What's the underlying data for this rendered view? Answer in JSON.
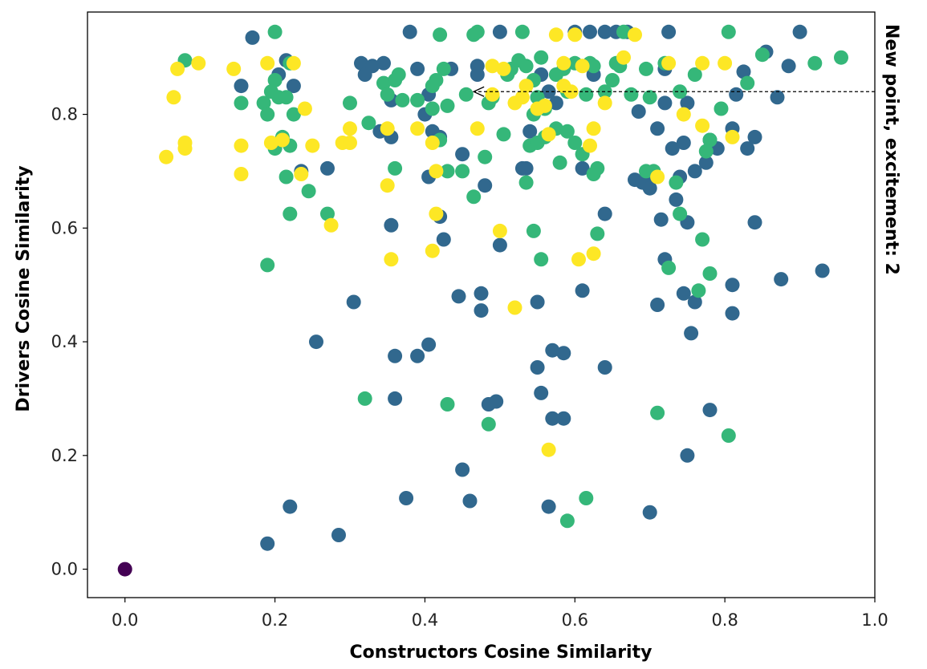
{
  "chart_data": {
    "type": "scatter",
    "title": "",
    "xlabel": "Constructors Cosine Similarity",
    "ylabel": "Drivers Cosine Similarity",
    "xlim": [
      -0.05,
      1.0
    ],
    "ylim": [
      -0.05,
      0.98
    ],
    "xticks": [
      {
        "value": 0.0,
        "label": "0.0"
      },
      {
        "value": 0.2,
        "label": "0.2"
      },
      {
        "value": 0.4,
        "label": "0.4"
      },
      {
        "value": 0.6,
        "label": "0.6"
      },
      {
        "value": 0.8,
        "label": "0.8"
      },
      {
        "value": 1.0,
        "label": "1.0"
      }
    ],
    "yticks": [
      {
        "value": 0.0,
        "label": "0.0"
      },
      {
        "value": 0.2,
        "label": "0.2"
      },
      {
        "value": 0.4,
        "label": "0.4"
      },
      {
        "value": 0.6,
        "label": "0.6"
      },
      {
        "value": 0.8,
        "label": "0.8"
      }
    ],
    "grid": false,
    "annotation": {
      "text": "New point, excitement: 2",
      "xy": [
        0.465,
        0.84
      ],
      "xytext": [
        1.0,
        0.84
      ]
    },
    "series": [
      {
        "color": "#440154",
        "points": [
          [
            0.0,
            0.0
          ]
        ]
      },
      {
        "color": "#31688e",
        "points": [
          [
            0.17,
            0.935
          ],
          [
            0.155,
            0.85
          ],
          [
            0.205,
            0.87
          ],
          [
            0.215,
            0.895
          ],
          [
            0.225,
            0.85
          ],
          [
            0.235,
            0.7
          ],
          [
            0.27,
            0.705
          ],
          [
            0.315,
            0.89
          ],
          [
            0.32,
            0.87
          ],
          [
            0.33,
            0.885
          ],
          [
            0.345,
            0.89
          ],
          [
            0.34,
            0.77
          ],
          [
            0.355,
            0.76
          ],
          [
            0.355,
            0.825
          ],
          [
            0.38,
            0.945
          ],
          [
            0.39,
            0.88
          ],
          [
            0.4,
            0.8
          ],
          [
            0.405,
            0.835
          ],
          [
            0.41,
            0.77
          ],
          [
            0.42,
            0.76
          ],
          [
            0.405,
            0.69
          ],
          [
            0.435,
            0.88
          ],
          [
            0.45,
            0.73
          ],
          [
            0.47,
            0.885
          ],
          [
            0.47,
            0.87
          ],
          [
            0.48,
            0.675
          ],
          [
            0.5,
            0.945
          ],
          [
            0.53,
            0.705
          ],
          [
            0.535,
            0.705
          ],
          [
            0.54,
            0.77
          ],
          [
            0.55,
            0.83
          ],
          [
            0.555,
            0.87
          ],
          [
            0.565,
            0.84
          ],
          [
            0.575,
            0.82
          ],
          [
            0.6,
            0.945
          ],
          [
            0.61,
            0.705
          ],
          [
            0.62,
            0.945
          ],
          [
            0.625,
            0.87
          ],
          [
            0.64,
            0.945
          ],
          [
            0.655,
            0.945
          ],
          [
            0.67,
            0.945
          ],
          [
            0.68,
            0.685
          ],
          [
            0.685,
            0.805
          ],
          [
            0.69,
            0.68
          ],
          [
            0.7,
            0.67
          ],
          [
            0.705,
            0.69
          ],
          [
            0.71,
            0.775
          ],
          [
            0.715,
            0.615
          ],
          [
            0.72,
            0.88
          ],
          [
            0.72,
            0.82
          ],
          [
            0.725,
            0.945
          ],
          [
            0.73,
            0.74
          ],
          [
            0.74,
            0.69
          ],
          [
            0.745,
            0.75
          ],
          [
            0.75,
            0.82
          ],
          [
            0.76,
            0.7
          ],
          [
            0.775,
            0.715
          ],
          [
            0.78,
            0.755
          ],
          [
            0.79,
            0.74
          ],
          [
            0.81,
            0.775
          ],
          [
            0.815,
            0.835
          ],
          [
            0.825,
            0.875
          ],
          [
            0.83,
            0.74
          ],
          [
            0.84,
            0.76
          ],
          [
            0.855,
            0.91
          ],
          [
            0.87,
            0.83
          ],
          [
            0.885,
            0.885
          ],
          [
            0.9,
            0.945
          ],
          [
            0.355,
            0.605
          ],
          [
            0.42,
            0.62
          ],
          [
            0.425,
            0.58
          ],
          [
            0.5,
            0.57
          ],
          [
            0.445,
            0.48
          ],
          [
            0.475,
            0.485
          ],
          [
            0.475,
            0.455
          ],
          [
            0.305,
            0.47
          ],
          [
            0.55,
            0.47
          ],
          [
            0.61,
            0.49
          ],
          [
            0.64,
            0.625
          ],
          [
            0.71,
            0.465
          ],
          [
            0.72,
            0.545
          ],
          [
            0.735,
            0.65
          ],
          [
            0.745,
            0.485
          ],
          [
            0.75,
            0.61
          ],
          [
            0.76,
            0.47
          ],
          [
            0.81,
            0.5
          ],
          [
            0.81,
            0.45
          ],
          [
            0.84,
            0.61
          ],
          [
            0.875,
            0.51
          ],
          [
            0.93,
            0.525
          ],
          [
            0.755,
            0.415
          ],
          [
            0.255,
            0.4
          ],
          [
            0.36,
            0.375
          ],
          [
            0.39,
            0.375
          ],
          [
            0.405,
            0.395
          ],
          [
            0.57,
            0.385
          ],
          [
            0.585,
            0.38
          ],
          [
            0.55,
            0.355
          ],
          [
            0.555,
            0.31
          ],
          [
            0.64,
            0.355
          ],
          [
            0.36,
            0.3
          ],
          [
            0.485,
            0.29
          ],
          [
            0.495,
            0.295
          ],
          [
            0.57,
            0.265
          ],
          [
            0.585,
            0.265
          ],
          [
            0.78,
            0.28
          ],
          [
            0.75,
            0.2
          ],
          [
            0.45,
            0.175
          ],
          [
            0.22,
            0.11
          ],
          [
            0.375,
            0.125
          ],
          [
            0.46,
            0.12
          ],
          [
            0.565,
            0.11
          ],
          [
            0.7,
            0.1
          ],
          [
            0.285,
            0.06
          ],
          [
            0.19,
            0.045
          ]
        ]
      },
      {
        "color": "#35b779",
        "points": [
          [
            0.08,
            0.895
          ],
          [
            0.2,
            0.945
          ],
          [
            0.155,
            0.82
          ],
          [
            0.185,
            0.82
          ],
          [
            0.19,
            0.8
          ],
          [
            0.195,
            0.84
          ],
          [
            0.2,
            0.86
          ],
          [
            0.205,
            0.83
          ],
          [
            0.215,
            0.83
          ],
          [
            0.22,
            0.89
          ],
          [
            0.225,
            0.8
          ],
          [
            0.2,
            0.74
          ],
          [
            0.21,
            0.76
          ],
          [
            0.22,
            0.745
          ],
          [
            0.215,
            0.69
          ],
          [
            0.245,
            0.665
          ],
          [
            0.27,
            0.625
          ],
          [
            0.22,
            0.625
          ],
          [
            0.19,
            0.535
          ],
          [
            0.3,
            0.82
          ],
          [
            0.325,
            0.785
          ],
          [
            0.345,
            0.855
          ],
          [
            0.35,
            0.835
          ],
          [
            0.36,
            0.86
          ],
          [
            0.365,
            0.87
          ],
          [
            0.37,
            0.825
          ],
          [
            0.39,
            0.825
          ],
          [
            0.41,
            0.85
          ],
          [
            0.415,
            0.86
          ],
          [
            0.425,
            0.88
          ],
          [
            0.42,
            0.94
          ],
          [
            0.43,
            0.815
          ],
          [
            0.41,
            0.81
          ],
          [
            0.42,
            0.755
          ],
          [
            0.43,
            0.7
          ],
          [
            0.455,
            0.835
          ],
          [
            0.465,
            0.94
          ],
          [
            0.47,
            0.945
          ],
          [
            0.485,
            0.82
          ],
          [
            0.49,
            0.83
          ],
          [
            0.51,
            0.87
          ],
          [
            0.515,
            0.88
          ],
          [
            0.525,
            0.895
          ],
          [
            0.53,
            0.945
          ],
          [
            0.535,
            0.885
          ],
          [
            0.545,
            0.86
          ],
          [
            0.55,
            0.83
          ],
          [
            0.555,
            0.9
          ],
          [
            0.56,
            0.81
          ],
          [
            0.575,
            0.87
          ],
          [
            0.585,
            0.88
          ],
          [
            0.59,
            0.84
          ],
          [
            0.6,
            0.89
          ],
          [
            0.615,
            0.835
          ],
          [
            0.62,
            0.89
          ],
          [
            0.625,
            0.885
          ],
          [
            0.64,
            0.84
          ],
          [
            0.65,
            0.86
          ],
          [
            0.655,
            0.89
          ],
          [
            0.66,
            0.885
          ],
          [
            0.665,
            0.945
          ],
          [
            0.675,
            0.835
          ],
          [
            0.695,
            0.88
          ],
          [
            0.7,
            0.83
          ],
          [
            0.72,
            0.89
          ],
          [
            0.74,
            0.84
          ],
          [
            0.76,
            0.87
          ],
          [
            0.795,
            0.81
          ],
          [
            0.805,
            0.945
          ],
          [
            0.83,
            0.855
          ],
          [
            0.85,
            0.905
          ],
          [
            0.92,
            0.89
          ],
          [
            0.955,
            0.9
          ],
          [
            0.545,
            0.8
          ],
          [
            0.54,
            0.745
          ],
          [
            0.55,
            0.75
          ],
          [
            0.56,
            0.76
          ],
          [
            0.575,
            0.775
          ],
          [
            0.58,
            0.715
          ],
          [
            0.59,
            0.77
          ],
          [
            0.6,
            0.75
          ],
          [
            0.61,
            0.73
          ],
          [
            0.625,
            0.695
          ],
          [
            0.63,
            0.705
          ],
          [
            0.36,
            0.705
          ],
          [
            0.45,
            0.7
          ],
          [
            0.465,
            0.655
          ],
          [
            0.48,
            0.725
          ],
          [
            0.505,
            0.765
          ],
          [
            0.535,
            0.68
          ],
          [
            0.545,
            0.595
          ],
          [
            0.555,
            0.545
          ],
          [
            0.63,
            0.59
          ],
          [
            0.695,
            0.7
          ],
          [
            0.705,
            0.7
          ],
          [
            0.725,
            0.53
          ],
          [
            0.735,
            0.68
          ],
          [
            0.74,
            0.625
          ],
          [
            0.77,
            0.58
          ],
          [
            0.765,
            0.49
          ],
          [
            0.78,
            0.52
          ],
          [
            0.78,
            0.755
          ],
          [
            0.775,
            0.735
          ],
          [
            0.32,
            0.3
          ],
          [
            0.43,
            0.29
          ],
          [
            0.485,
            0.255
          ],
          [
            0.71,
            0.275
          ],
          [
            0.805,
            0.235
          ],
          [
            0.615,
            0.125
          ],
          [
            0.59,
            0.085
          ]
        ]
      },
      {
        "color": "#fde725",
        "points": [
          [
            0.065,
            0.83
          ],
          [
            0.07,
            0.88
          ],
          [
            0.098,
            0.89
          ],
          [
            0.145,
            0.88
          ],
          [
            0.19,
            0.89
          ],
          [
            0.225,
            0.89
          ],
          [
            0.055,
            0.725
          ],
          [
            0.08,
            0.74
          ],
          [
            0.08,
            0.75
          ],
          [
            0.155,
            0.745
          ],
          [
            0.155,
            0.695
          ],
          [
            0.195,
            0.75
          ],
          [
            0.21,
            0.755
          ],
          [
            0.24,
            0.81
          ],
          [
            0.235,
            0.695
          ],
          [
            0.25,
            0.745
          ],
          [
            0.29,
            0.75
          ],
          [
            0.3,
            0.775
          ],
          [
            0.3,
            0.75
          ],
          [
            0.275,
            0.605
          ],
          [
            0.35,
            0.775
          ],
          [
            0.35,
            0.675
          ],
          [
            0.355,
            0.545
          ],
          [
            0.39,
            0.775
          ],
          [
            0.41,
            0.75
          ],
          [
            0.415,
            0.7
          ],
          [
            0.415,
            0.625
          ],
          [
            0.41,
            0.56
          ],
          [
            0.47,
            0.775
          ],
          [
            0.49,
            0.835
          ],
          [
            0.5,
            0.595
          ],
          [
            0.52,
            0.46
          ],
          [
            0.52,
            0.82
          ],
          [
            0.53,
            0.83
          ],
          [
            0.535,
            0.85
          ],
          [
            0.56,
            0.815
          ],
          [
            0.565,
            0.765
          ],
          [
            0.565,
            0.21
          ],
          [
            0.575,
            0.94
          ],
          [
            0.585,
            0.89
          ],
          [
            0.595,
            0.84
          ],
          [
            0.6,
            0.94
          ],
          [
            0.61,
            0.885
          ],
          [
            0.62,
            0.745
          ],
          [
            0.625,
            0.775
          ],
          [
            0.605,
            0.545
          ],
          [
            0.625,
            0.555
          ],
          [
            0.64,
            0.82
          ],
          [
            0.665,
            0.9
          ],
          [
            0.68,
            0.94
          ],
          [
            0.71,
            0.69
          ],
          [
            0.725,
            0.89
          ],
          [
            0.745,
            0.8
          ],
          [
            0.77,
            0.89
          ],
          [
            0.77,
            0.78
          ],
          [
            0.8,
            0.89
          ],
          [
            0.81,
            0.76
          ],
          [
            0.585,
            0.85
          ],
          [
            0.55,
            0.81
          ],
          [
            0.49,
            0.885
          ],
          [
            0.505,
            0.88
          ]
        ]
      }
    ]
  }
}
